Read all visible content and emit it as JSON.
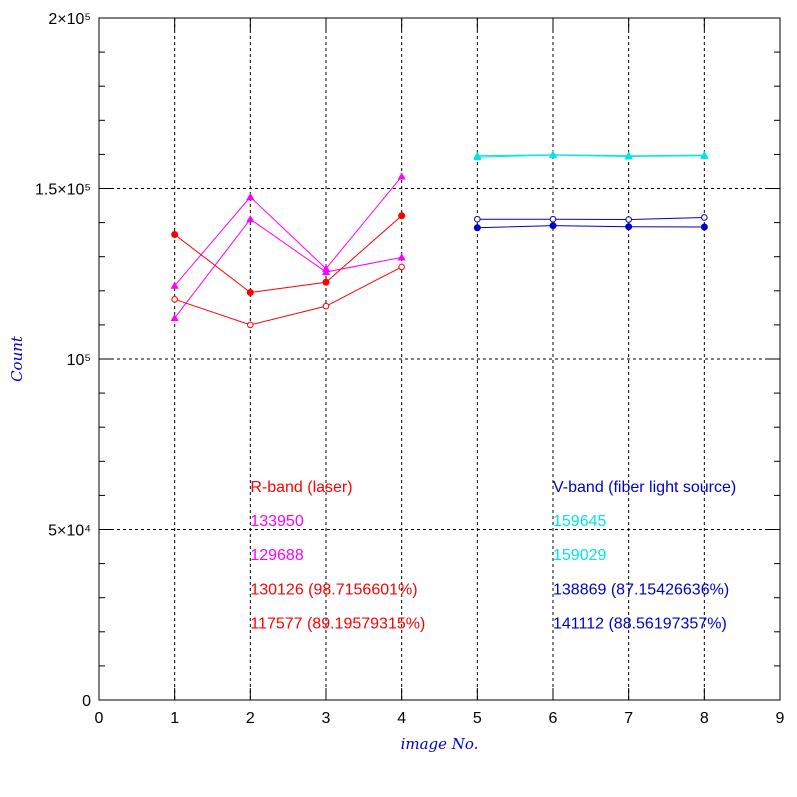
{
  "chart_data": {
    "type": "line",
    "title": "",
    "xlabel": "image No.",
    "ylabel": "Count",
    "xlim": [
      0,
      9
    ],
    "ylim": [
      0,
      200000
    ],
    "x_ticks": [
      0,
      1,
      2,
      3,
      4,
      5,
      6,
      7,
      8,
      9
    ],
    "y_ticks": [
      {
        "value": 0,
        "label": "0"
      },
      {
        "value": 50000,
        "label": "5×10⁴"
      },
      {
        "value": 100000,
        "label": "10⁵"
      },
      {
        "value": 150000,
        "label": "1.5×10⁵"
      },
      {
        "value": 200000,
        "label": "2×10⁵"
      }
    ],
    "grid": true,
    "grid_style": "dashed",
    "series": [
      {
        "color": "#ff00ff",
        "marker": "triangle",
        "x": [
          1,
          2,
          3,
          4
        ],
        "y": [
          121500,
          147500,
          126500,
          153500
        ]
      },
      {
        "color": "#ff00ff",
        "marker": "triangle",
        "x": [
          1,
          2,
          3,
          4
        ],
        "y": [
          112000,
          141000,
          125500,
          129800
        ]
      },
      {
        "color": "#ff0000",
        "marker": "filled-circle",
        "x": [
          1,
          2,
          3,
          4
        ],
        "y": [
          136500,
          119500,
          122500,
          142000
        ]
      },
      {
        "color": "#ff0000",
        "marker": "open-circle",
        "x": [
          1,
          2,
          3,
          4
        ],
        "y": [
          117500,
          110000,
          115500,
          127000
        ]
      },
      {
        "color": "#00e5e5",
        "marker": "triangle",
        "x": [
          5,
          6,
          7,
          8
        ],
        "y": [
          159200,
          159800,
          159400,
          159600
        ]
      },
      {
        "color": "#00e5e5",
        "marker": "triangle",
        "x": [
          5,
          6,
          7,
          8
        ],
        "y": [
          159600,
          159900,
          159600,
          159800
        ]
      },
      {
        "color": "#0000cc",
        "marker": "open-circle",
        "x": [
          5,
          6,
          7,
          8
        ],
        "y": [
          141000,
          141000,
          140900,
          141500
        ]
      },
      {
        "color": "#0000cc",
        "marker": "filled-circle",
        "x": [
          5,
          6,
          7,
          8
        ],
        "y": [
          138500,
          139100,
          138800,
          138700
        ]
      }
    ],
    "annotations": [
      {
        "text": "R-band (laser)",
        "color": "#ff0000",
        "x": 2,
        "y": 61000
      },
      {
        "text": "133950",
        "color": "#ff00ff",
        "x": 2,
        "y": 51000
      },
      {
        "text": "129688",
        "color": "#ff00ff",
        "x": 2,
        "y": 41000
      },
      {
        "text": "130126 (98.7156601%)",
        "color": "#ff0000",
        "x": 2,
        "y": 31000
      },
      {
        "text": "117577 (89.19579315%)",
        "color": "#ff0000",
        "x": 2,
        "y": 21000
      },
      {
        "text": "V-band (fiber light source)",
        "color": "#0000cc",
        "x": 6,
        "y": 61000
      },
      {
        "text": "159645",
        "color": "#00e5e5",
        "x": 6,
        "y": 51000
      },
      {
        "text": "159029",
        "color": "#00e5e5",
        "x": 6,
        "y": 41000
      },
      {
        "text": "138869 (87.15426636%)",
        "color": "#0000cc",
        "x": 6,
        "y": 31000
      },
      {
        "text": "141112 (88.56197357%)",
        "color": "#0000cc",
        "x": 6,
        "y": 21000
      }
    ]
  }
}
